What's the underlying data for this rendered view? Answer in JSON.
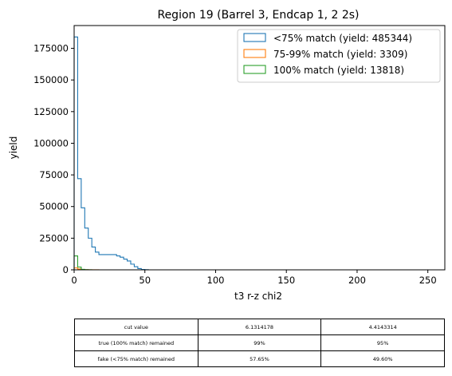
{
  "chart_data": {
    "type": "histogram",
    "title": "Region 19 (Barrel 3, Endcap 1, 2 2s)",
    "xlabel": "t3 r-z chi2",
    "ylabel": "yield",
    "xlim": [
      0,
      262
    ],
    "ylim": [
      0,
      193000
    ],
    "xticks": [
      "0",
      "50",
      "100",
      "150",
      "200",
      "250"
    ],
    "yticks": [
      "0",
      "25000",
      "50000",
      "75000",
      "100000",
      "125000",
      "150000",
      "175000"
    ],
    "bin_width": 2.5,
    "legend_position": "top-right",
    "series": [
      {
        "name": "<75% match (yield: 485344)",
        "color": "#1f77b4",
        "values": [
          184000,
          72000,
          49000,
          33000,
          25000,
          18000,
          14000,
          12000,
          12000,
          12000,
          12000,
          12000,
          11000,
          10000,
          8500,
          7000,
          4500,
          2500,
          1000,
          300,
          100
        ]
      },
      {
        "name": "75-99% match (yield: 3309)",
        "color": "#ff7f0e",
        "values": [
          1500,
          700,
          300,
          150,
          80,
          40,
          20
        ]
      },
      {
        "name": "100% match (yield: 13818)",
        "color": "#2ca02c",
        "values": [
          11000,
          2200,
          400,
          150,
          50
        ]
      }
    ]
  },
  "cut_table": {
    "rows": [
      [
        "cut value",
        "6.1314178",
        "4.4143314"
      ],
      [
        "true (100% match) remained",
        "99%",
        "95%"
      ],
      [
        "fake (<75% match) remained",
        "57.65%",
        "49.60%"
      ]
    ]
  }
}
